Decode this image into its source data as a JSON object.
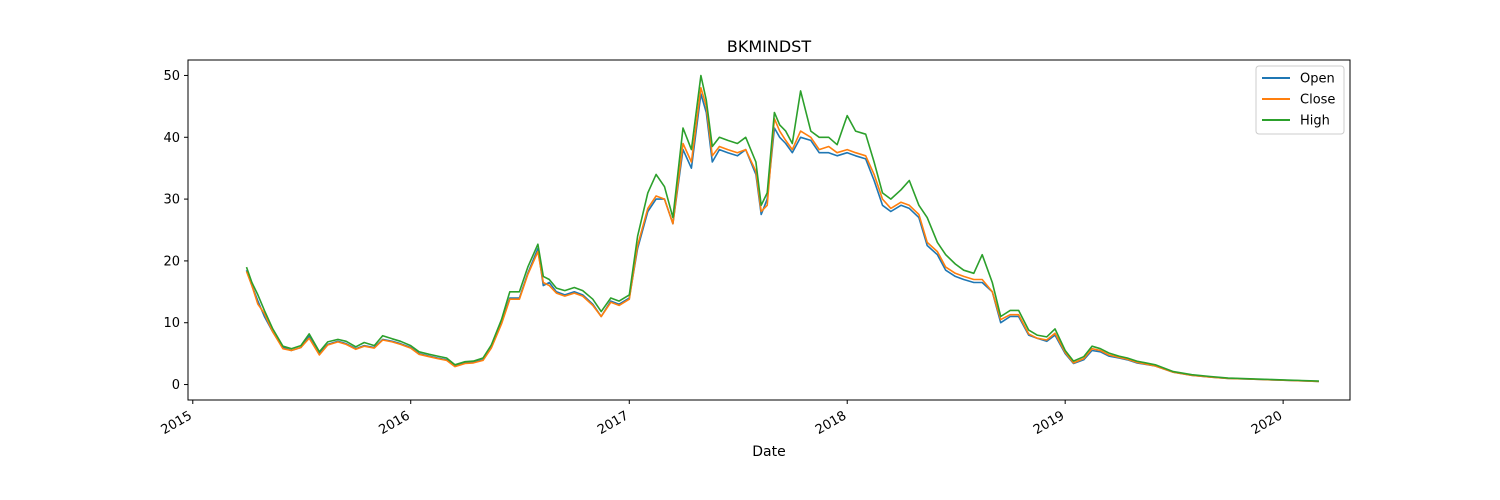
{
  "chart_data": {
    "type": "line",
    "title": "BKMINDST",
    "xlabel": "Date",
    "ylabel": "",
    "xlim": [
      "2014-12-24",
      "2020-04-22"
    ],
    "ylim": [
      -2.5,
      52.5
    ],
    "x_ticks": [
      "2015",
      "2016",
      "2017",
      "2018",
      "2019",
      "2020"
    ],
    "y_ticks": [
      0,
      10,
      20,
      30,
      40,
      50
    ],
    "grid": false,
    "legend_position": "top-right",
    "x": [
      "2015-04-01",
      "2015-04-10",
      "2015-04-20",
      "2015-05-01",
      "2015-05-15",
      "2015-06-01",
      "2015-06-15",
      "2015-07-01",
      "2015-07-15",
      "2015-08-01",
      "2015-08-15",
      "2015-09-01",
      "2015-09-15",
      "2015-10-01",
      "2015-10-15",
      "2015-11-01",
      "2015-11-15",
      "2015-12-01",
      "2015-12-15",
      "2016-01-01",
      "2016-01-15",
      "2016-02-01",
      "2016-02-15",
      "2016-03-01",
      "2016-03-15",
      "2016-04-01",
      "2016-04-15",
      "2016-05-01",
      "2016-05-15",
      "2016-06-01",
      "2016-06-15",
      "2016-07-01",
      "2016-07-15",
      "2016-08-01",
      "2016-08-10",
      "2016-08-20",
      "2016-09-01",
      "2016-09-15",
      "2016-10-01",
      "2016-10-15",
      "2016-11-01",
      "2016-11-15",
      "2016-12-01",
      "2016-12-15",
      "2017-01-01",
      "2017-01-15",
      "2017-02-01",
      "2017-02-15",
      "2017-03-01",
      "2017-03-15",
      "2017-04-01",
      "2017-04-15",
      "2017-05-01",
      "2017-05-10",
      "2017-05-20",
      "2017-06-01",
      "2017-06-15",
      "2017-07-01",
      "2017-07-15",
      "2017-08-01",
      "2017-08-10",
      "2017-08-20",
      "2017-09-01",
      "2017-09-10",
      "2017-09-20",
      "2017-10-01",
      "2017-10-15",
      "2017-11-01",
      "2017-11-15",
      "2017-12-01",
      "2017-12-15",
      "2018-01-01",
      "2018-01-15",
      "2018-02-01",
      "2018-02-15",
      "2018-03-01",
      "2018-03-15",
      "2018-04-01",
      "2018-04-15",
      "2018-05-01",
      "2018-05-15",
      "2018-06-01",
      "2018-06-15",
      "2018-07-01",
      "2018-07-15",
      "2018-08-01",
      "2018-08-15",
      "2018-09-01",
      "2018-09-15",
      "2018-10-01",
      "2018-10-15",
      "2018-11-01",
      "2018-11-15",
      "2018-12-01",
      "2018-12-15",
      "2019-01-01",
      "2019-01-15",
      "2019-02-01",
      "2019-02-15",
      "2019-03-01",
      "2019-03-15",
      "2019-04-01",
      "2019-04-15",
      "2019-05-01",
      "2019-06-01",
      "2019-07-01",
      "2019-08-01",
      "2019-09-01",
      "2019-10-01",
      "2019-11-01",
      "2019-12-01",
      "2020-01-01",
      "2020-02-01",
      "2020-03-01"
    ],
    "series": [
      {
        "name": "Open",
        "color": "#1f77b4",
        "values": [
          18.5,
          16.0,
          13.5,
          11.0,
          8.5,
          6.0,
          5.5,
          6.0,
          7.8,
          5.0,
          6.5,
          7.0,
          6.6,
          5.8,
          6.3,
          6.0,
          7.3,
          7.0,
          6.6,
          6.0,
          5.0,
          4.6,
          4.3,
          4.0,
          3.0,
          3.5,
          3.6,
          4.0,
          6.0,
          10.0,
          14.0,
          14.0,
          18.0,
          22.0,
          16.0,
          16.5,
          15.0,
          14.5,
          15.0,
          14.5,
          13.0,
          11.0,
          13.5,
          13.0,
          14.0,
          22.0,
          28.0,
          30.0,
          30.0,
          26.0,
          38.0,
          35.0,
          47.0,
          44.0,
          36.0,
          38.0,
          37.5,
          37.0,
          38.0,
          34.0,
          27.5,
          30.0,
          41.5,
          40.0,
          39.0,
          37.5,
          40.0,
          39.5,
          37.5,
          37.5,
          37.0,
          37.5,
          37.0,
          36.5,
          33.0,
          29.0,
          28.0,
          29.0,
          28.5,
          27.0,
          22.5,
          21.0,
          18.5,
          17.5,
          17.0,
          16.5,
          16.5,
          15.0,
          10.0,
          11.0,
          11.0,
          8.0,
          7.5,
          7.0,
          8.0,
          5.0,
          3.4,
          4.0,
          5.5,
          5.3,
          4.6,
          4.3,
          4.0,
          3.5,
          3.0,
          2.0,
          1.5,
          1.2,
          1.0,
          0.9,
          0.8,
          0.7,
          0.6,
          0.5
        ]
      },
      {
        "name": "Close",
        "color": "#ff7f0e",
        "values": [
          18.3,
          16.0,
          13.0,
          11.5,
          8.5,
          5.8,
          5.5,
          6.0,
          7.5,
          4.8,
          6.4,
          6.9,
          6.5,
          5.7,
          6.2,
          5.9,
          7.2,
          6.9,
          6.5,
          5.9,
          4.9,
          4.5,
          4.2,
          3.9,
          2.9,
          3.4,
          3.5,
          3.9,
          5.9,
          9.8,
          13.8,
          13.8,
          17.8,
          21.5,
          16.5,
          16.0,
          14.8,
          14.3,
          14.8,
          14.3,
          12.8,
          11.0,
          13.3,
          12.8,
          13.8,
          22.5,
          28.5,
          30.5,
          30.0,
          26.0,
          39.0,
          36.0,
          48.0,
          45.0,
          37.0,
          38.5,
          38.0,
          37.5,
          38.0,
          34.5,
          28.0,
          29.0,
          43.0,
          41.0,
          39.5,
          38.0,
          41.0,
          40.0,
          38.0,
          38.5,
          37.5,
          38.0,
          37.5,
          37.0,
          34.0,
          30.0,
          28.5,
          29.5,
          29.0,
          27.5,
          23.0,
          21.5,
          19.0,
          18.0,
          17.5,
          17.0,
          17.0,
          15.0,
          10.5,
          11.3,
          11.3,
          8.2,
          7.5,
          7.2,
          8.3,
          5.2,
          3.5,
          4.2,
          5.8,
          5.5,
          4.8,
          4.4,
          4.1,
          3.6,
          3.0,
          2.0,
          1.5,
          1.2,
          1.0,
          0.9,
          0.8,
          0.7,
          0.6,
          0.5
        ]
      },
      {
        "name": "High",
        "color": "#2ca02c",
        "values": [
          19.0,
          16.5,
          14.5,
          12.0,
          9.0,
          6.2,
          5.8,
          6.3,
          8.2,
          5.3,
          6.9,
          7.3,
          7.0,
          6.1,
          6.8,
          6.3,
          7.9,
          7.4,
          7.0,
          6.3,
          5.3,
          4.9,
          4.6,
          4.3,
          3.2,
          3.7,
          3.8,
          4.3,
          6.4,
          10.5,
          15.0,
          15.0,
          19.0,
          22.7,
          17.5,
          17.0,
          15.6,
          15.2,
          15.7,
          15.2,
          13.8,
          11.8,
          14.0,
          13.5,
          14.5,
          24.0,
          31.0,
          34.0,
          32.0,
          27.0,
          41.5,
          38.0,
          50.0,
          46.0,
          38.5,
          40.0,
          39.5,
          39.0,
          40.0,
          36.0,
          29.0,
          31.0,
          44.0,
          42.0,
          41.0,
          39.0,
          47.5,
          41.0,
          40.0,
          40.0,
          38.8,
          43.5,
          41.0,
          40.5,
          36.0,
          31.0,
          30.0,
          31.5,
          33.0,
          29.0,
          27.0,
          23.0,
          21.0,
          19.5,
          18.5,
          18.0,
          21.0,
          16.5,
          11.0,
          12.0,
          12.0,
          8.8,
          8.0,
          7.7,
          9.0,
          5.5,
          3.8,
          4.5,
          6.2,
          5.8,
          5.1,
          4.6,
          4.3,
          3.8,
          3.2,
          2.1,
          1.6,
          1.3,
          1.05,
          0.95,
          0.85,
          0.75,
          0.65,
          0.55
        ]
      }
    ]
  }
}
